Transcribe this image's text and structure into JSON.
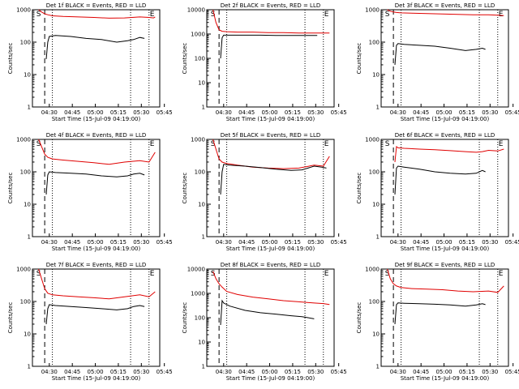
{
  "chart_data": [
    {
      "type": "line",
      "title": "Det 1f BLACK = Events, RED = LLD",
      "xlabel": "Start Time (15-Jul-09 04:19:00)",
      "ylabel": "Counts/sec",
      "yscale": "log",
      "ylim": [
        1,
        1000
      ],
      "xlim": [
        0,
        83
      ],
      "x_tick_labels": [
        "04:30",
        "04:45",
        "05:00",
        "05:15",
        "05:30",
        "05:45"
      ],
      "y_tick_labels": [
        "1",
        "10",
        "100",
        "1000"
      ],
      "markers": {
        "S": 4,
        "E": 78
      },
      "vlines_dashed": [
        8
      ],
      "vlines_dotted": [
        13,
        64,
        76
      ],
      "series": [
        {
          "color": "#e00000",
          "x": [
            4,
            6,
            8,
            10,
            13,
            20,
            30,
            40,
            50,
            60,
            70,
            76,
            79,
            80
          ],
          "y": [
            1000,
            850,
            750,
            700,
            650,
            620,
            600,
            580,
            550,
            560,
            600,
            580,
            560,
            600
          ]
        },
        {
          "color": "#000000",
          "x": [
            9,
            10,
            11,
            15,
            25,
            35,
            45,
            55,
            62,
            66,
            70,
            73
          ],
          "y": [
            30,
            100,
            150,
            160,
            150,
            130,
            120,
            100,
            110,
            120,
            140,
            130
          ]
        }
      ]
    },
    {
      "type": "line",
      "title": "Det 2f BLACK = Events, RED = LLD",
      "xlabel": "Start Time (15-Jul-09 04:19:00)",
      "ylabel": "Counts/sec",
      "yscale": "log",
      "ylim": [
        1,
        10000
      ],
      "xlim": [
        0,
        83
      ],
      "x_tick_labels": [
        "04:30",
        "04:45",
        "05:00",
        "05:15",
        "05:30",
        "05:45"
      ],
      "y_tick_labels": [
        "1",
        "10",
        "100",
        "1000",
        "10000"
      ],
      "markers": {
        "S": 4,
        "E": 78
      },
      "vlines_dashed": [
        8
      ],
      "vlines_dotted": [
        13,
        64,
        76
      ],
      "series": [
        {
          "color": "#e00000",
          "x": [
            4,
            6,
            8,
            10,
            13,
            20,
            30,
            40,
            50,
            60,
            70,
            76,
            80
          ],
          "y": [
            10000,
            3000,
            1500,
            1300,
            1250,
            1200,
            1200,
            1150,
            1150,
            1100,
            1100,
            1100,
            1100
          ]
        },
        {
          "color": "#000000",
          "x": [
            9,
            10,
            11,
            15,
            25,
            35,
            45,
            55,
            65,
            72
          ],
          "y": [
            100,
            700,
            900,
            900,
            900,
            900,
            880,
            880,
            870,
            870
          ]
        }
      ]
    },
    {
      "type": "line",
      "title": "Det 3f BLACK = Events, RED = LLD",
      "xlabel": "Start Time (15-Jul-09 04:19:00)",
      "ylabel": "Counts/sec",
      "yscale": "log",
      "ylim": [
        1,
        1000
      ],
      "xlim": [
        0,
        83
      ],
      "x_tick_labels": [
        "04:30",
        "04:45",
        "05:00",
        "05:15",
        "05:30",
        "05:45"
      ],
      "y_tick_labels": [
        "1",
        "10",
        "100",
        "1000"
      ],
      "markers": {
        "S": 4,
        "E": 78
      },
      "vlines_dashed": [
        8
      ],
      "vlines_dotted": [
        13,
        64,
        76
      ],
      "series": [
        {
          "color": "#e00000",
          "x": [
            4,
            6,
            8,
            10,
            13,
            20,
            30,
            40,
            50,
            60,
            70,
            76,
            80
          ],
          "y": [
            1000,
            900,
            850,
            820,
            800,
            780,
            760,
            740,
            720,
            700,
            700,
            680,
            660
          ]
        },
        {
          "color": "#000000",
          "x": [
            9,
            10,
            11,
            15,
            25,
            35,
            45,
            55,
            62,
            66,
            68
          ],
          "y": [
            20,
            80,
            90,
            85,
            80,
            75,
            65,
            55,
            60,
            65,
            60
          ]
        }
      ]
    },
    {
      "type": "line",
      "title": "Det 4f BLACK = Events, RED = LLD",
      "xlabel": "Start Time (15-Jul-09 04:19:00)",
      "ylabel": "Counts/sec",
      "yscale": "log",
      "ylim": [
        1,
        1000
      ],
      "xlim": [
        0,
        83
      ],
      "x_tick_labels": [
        "04:30",
        "04:45",
        "05:00",
        "05:15",
        "05:30",
        "05:45"
      ],
      "y_tick_labels": [
        "1",
        "10",
        "100",
        "1000"
      ],
      "markers": {
        "S": 4,
        "E": 78
      },
      "vlines_dashed": [
        8
      ],
      "vlines_dotted": [
        13,
        64,
        76
      ],
      "series": [
        {
          "color": "#e00000",
          "x": [
            4,
            6,
            8,
            10,
            13,
            20,
            30,
            40,
            50,
            60,
            70,
            76,
            80
          ],
          "y": [
            1000,
            600,
            350,
            280,
            250,
            230,
            210,
            190,
            170,
            200,
            220,
            200,
            400
          ]
        },
        {
          "color": "#000000",
          "x": [
            9,
            10,
            11,
            15,
            25,
            35,
            45,
            55,
            62,
            66,
            70,
            73
          ],
          "y": [
            20,
            80,
            100,
            95,
            90,
            85,
            75,
            70,
            75,
            85,
            90,
            80
          ]
        }
      ]
    },
    {
      "type": "line",
      "title": "Det 5f BLACK = Events, RED = LLD",
      "xlabel": "Start Time (15-Jul-09 04:19:00)",
      "ylabel": "Counts/sec",
      "yscale": "log",
      "ylim": [
        1,
        1000
      ],
      "xlim": [
        0,
        83
      ],
      "x_tick_labels": [
        "04:30",
        "04:45",
        "05:00",
        "05:15",
        "05:30",
        "05:45"
      ],
      "y_tick_labels": [
        "1",
        "10",
        "100",
        "1000"
      ],
      "markers": {
        "S": 4,
        "E": 78
      },
      "vlines_dashed": [
        8
      ],
      "vlines_dotted": [
        13,
        64,
        76
      ],
      "series": [
        {
          "color": "#e00000",
          "x": [
            4,
            6,
            8,
            10,
            13,
            20,
            30,
            40,
            50,
            60,
            70,
            76,
            80
          ],
          "y": [
            1000,
            500,
            250,
            200,
            180,
            160,
            140,
            130,
            125,
            130,
            160,
            150,
            300
          ]
        },
        {
          "color": "#000000",
          "x": [
            9,
            10,
            11,
            15,
            25,
            35,
            45,
            55,
            62,
            66,
            70,
            75,
            78
          ],
          "y": [
            20,
            100,
            170,
            160,
            150,
            135,
            120,
            110,
            115,
            130,
            150,
            140,
            130
          ]
        }
      ]
    },
    {
      "type": "line",
      "title": "Det 6f BLACK = Events, RED = LLD",
      "xlabel": "Start Time (15-Jul-09 04:19:00)",
      "ylabel": "Counts/sec",
      "yscale": "log",
      "ylim": [
        1,
        1000
      ],
      "xlim": [
        0,
        83
      ],
      "x_tick_labels": [
        "04:30",
        "04:45",
        "05:00",
        "05:15",
        "05:30",
        "05:45"
      ],
      "y_tick_labels": [
        "1",
        "10",
        "100",
        "1000"
      ],
      "markers": {
        "S": 4,
        "E": 78
      },
      "vlines_dashed": [
        8
      ],
      "vlines_dotted": [
        13,
        64,
        76
      ],
      "series": [
        {
          "color": "#e00000",
          "x": [
            9,
            10,
            11,
            15,
            25,
            35,
            45,
            55,
            62,
            66,
            70,
            76,
            80
          ],
          "y": [
            200,
            600,
            550,
            530,
            500,
            480,
            450,
            420,
            400,
            420,
            460,
            440,
            500
          ]
        },
        {
          "color": "#000000",
          "x": [
            9,
            10,
            11,
            15,
            25,
            35,
            45,
            55,
            62,
            66,
            68
          ],
          "y": [
            20,
            130,
            150,
            140,
            120,
            100,
            90,
            85,
            90,
            110,
            100
          ]
        }
      ]
    },
    {
      "type": "line",
      "title": "Det 7f BLACK = Events, RED = LLD",
      "xlabel": "Start Time (15-Jul-09 04:19:00)",
      "ylabel": "Counts/sec",
      "yscale": "log",
      "ylim": [
        1,
        1000
      ],
      "xlim": [
        0,
        83
      ],
      "x_tick_labels": [
        "04:30",
        "04:45",
        "05:00",
        "05:15",
        "05:30",
        "05:45"
      ],
      "y_tick_labels": [
        "1",
        "10",
        "100",
        "1000"
      ],
      "markers": {
        "S": 4,
        "E": 78
      },
      "vlines_dashed": [
        8
      ],
      "vlines_dotted": [
        13,
        64,
        76
      ],
      "series": [
        {
          "color": "#e00000",
          "x": [
            4,
            6,
            8,
            10,
            13,
            20,
            30,
            40,
            50,
            60,
            70,
            76,
            80
          ],
          "y": [
            1000,
            500,
            250,
            180,
            160,
            150,
            140,
            130,
            120,
            140,
            160,
            140,
            200
          ]
        },
        {
          "color": "#000000",
          "x": [
            9,
            10,
            11,
            15,
            25,
            35,
            45,
            55,
            62,
            66,
            70,
            73
          ],
          "y": [
            20,
            60,
            80,
            75,
            70,
            65,
            60,
            55,
            60,
            70,
            75,
            70
          ]
        }
      ]
    },
    {
      "type": "line",
      "title": "Det 8f BLACK = Events, RED = LLD",
      "xlabel": "Start Time (15-Jul-09 04:19:00)",
      "ylabel": "Counts/sec",
      "yscale": "log",
      "ylim": [
        1,
        10000
      ],
      "xlim": [
        0,
        83
      ],
      "x_tick_labels": [
        "04:30",
        "04:45",
        "05:00",
        "05:15",
        "05:30",
        "05:45"
      ],
      "y_tick_labels": [
        "1",
        "10",
        "100",
        "1000",
        "10000"
      ],
      "markers": {
        "S": 4,
        "E": 78
      },
      "vlines_dashed": [
        8
      ],
      "vlines_dotted": [
        13,
        64,
        76
      ],
      "series": [
        {
          "color": "#e00000",
          "x": [
            4,
            6,
            8,
            10,
            13,
            20,
            30,
            40,
            50,
            60,
            70,
            76,
            80
          ],
          "y": [
            8000,
            4000,
            2500,
            1800,
            1200,
            900,
            700,
            600,
            500,
            450,
            400,
            380,
            350
          ]
        },
        {
          "color": "#000000",
          "x": [
            9,
            10,
            11,
            15,
            25,
            35,
            45,
            55,
            62,
            66,
            70
          ],
          "y": [
            50,
            500,
            400,
            300,
            200,
            160,
            140,
            120,
            110,
            100,
            90
          ]
        }
      ]
    },
    {
      "type": "line",
      "title": "Det 9f BLACK = Events, RED = LLD",
      "xlabel": "Start Time (15-Jul-09 04:19:00)",
      "ylabel": "Counts/sec",
      "yscale": "log",
      "ylim": [
        1,
        1000
      ],
      "xlim": [
        0,
        83
      ],
      "x_tick_labels": [
        "04:30",
        "04:45",
        "05:00",
        "05:15",
        "05:30",
        "05:45"
      ],
      "y_tick_labels": [
        "1",
        "10",
        "100",
        "1000"
      ],
      "markers": {
        "S": 4,
        "E": 78
      },
      "vlines_dashed": [
        8
      ],
      "vlines_dotted": [
        13,
        64,
        76
      ],
      "series": [
        {
          "color": "#e00000",
          "x": [
            4,
            6,
            8,
            10,
            13,
            20,
            30,
            40,
            50,
            60,
            70,
            76,
            80
          ],
          "y": [
            1000,
            500,
            350,
            300,
            270,
            250,
            240,
            230,
            210,
            200,
            210,
            190,
            300
          ]
        },
        {
          "color": "#000000",
          "x": [
            9,
            10,
            11,
            15,
            25,
            35,
            45,
            55,
            62,
            66,
            68
          ],
          "y": [
            20,
            80,
            90,
            88,
            85,
            82,
            78,
            72,
            78,
            85,
            80
          ]
        }
      ]
    }
  ]
}
